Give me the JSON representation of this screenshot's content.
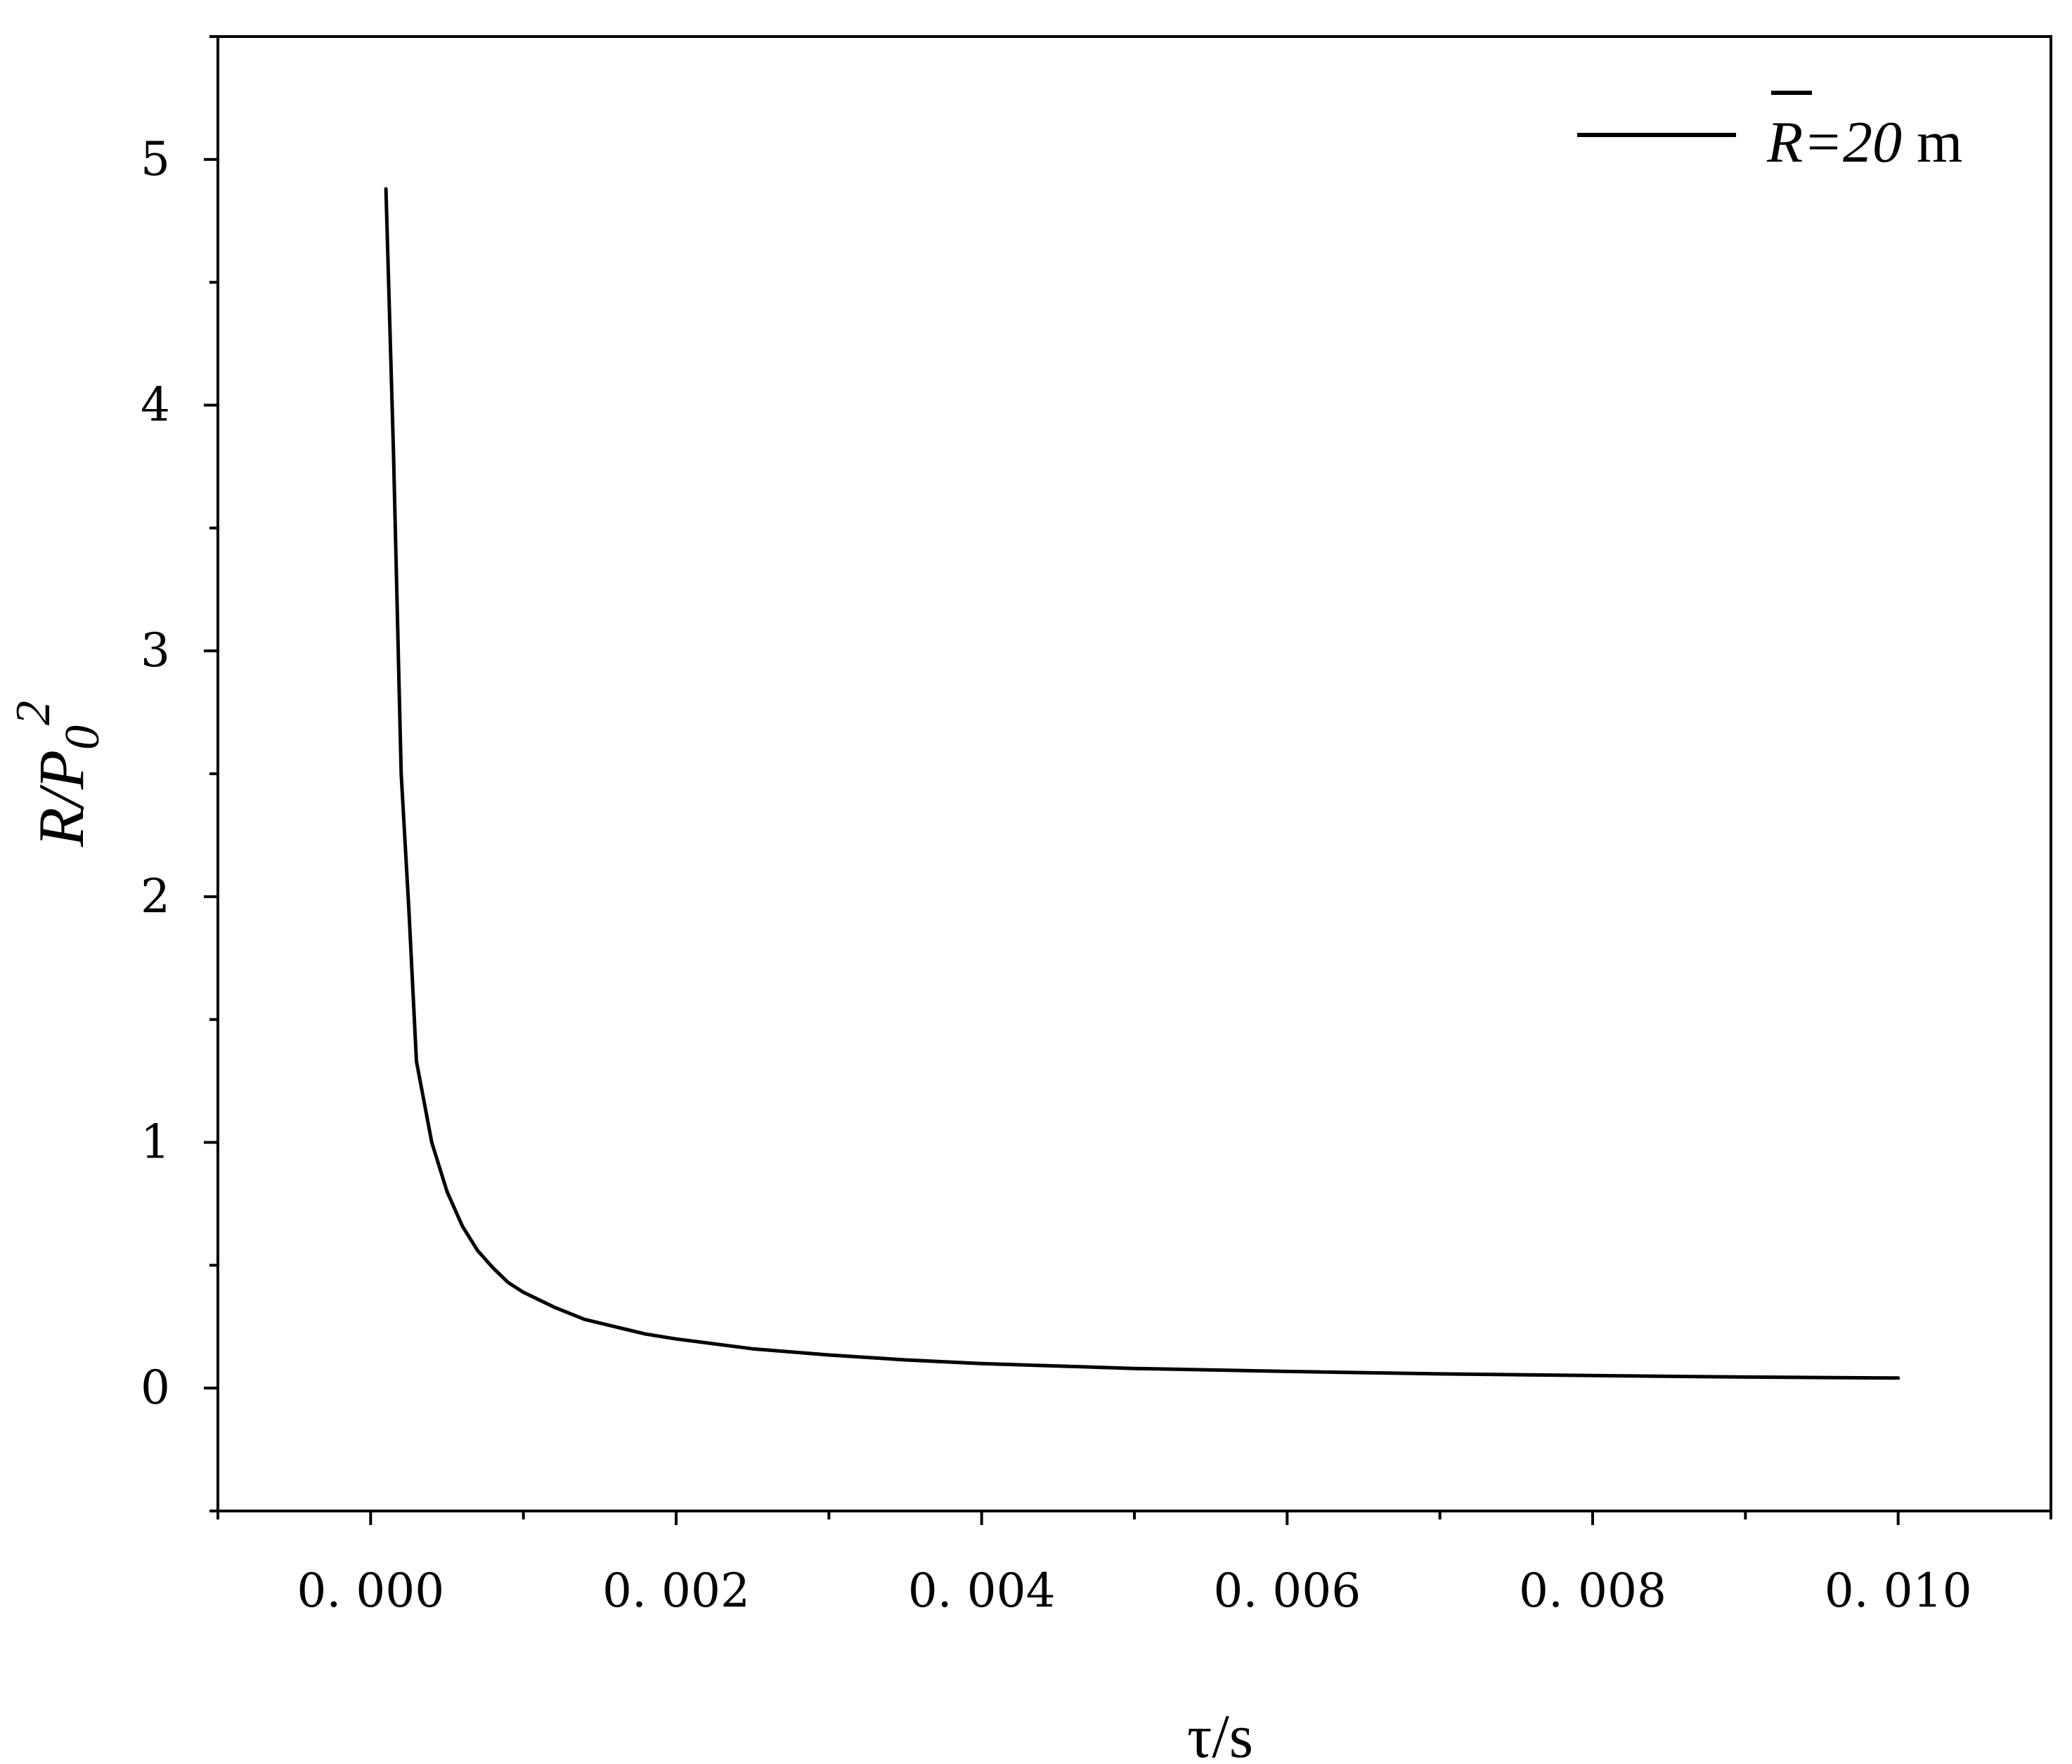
{
  "chart_data": {
    "type": "line",
    "title": "",
    "xlabel": "τ/s",
    "ylabel": {
      "main": "R/P",
      "subscript": "0",
      "superscript": "2"
    },
    "xlim": [
      -0.001,
      0.011
    ],
    "ylim": [
      -0.5,
      5.5
    ],
    "x_ticks": [
      0.0,
      0.002,
      0.004,
      0.006,
      0.008,
      0.01
    ],
    "x_tick_labels": [
      "0. 000",
      "0. 002",
      "0. 004",
      "0. 006",
      "0. 008",
      "0. 010"
    ],
    "y_ticks": [
      0,
      1,
      2,
      3,
      4,
      5
    ],
    "y_tick_labels": [
      "0",
      "1",
      "2",
      "3",
      "4",
      "5"
    ],
    "grid": false,
    "legend": {
      "position": "top-right"
    },
    "series": [
      {
        "name": "R̄=20 m",
        "name_parts": {
          "symbol": "R",
          "rest_italic": "=20",
          "unit": " m"
        },
        "color": "#000000",
        "x": [
          0.0001,
          0.00015,
          0.0002,
          0.00025,
          0.0003,
          0.0004,
          0.0005,
          0.0006,
          0.0007,
          0.0008,
          0.0009,
          0.001,
          0.0012,
          0.0014,
          0.0016,
          0.0018,
          0.002,
          0.0025,
          0.003,
          0.0035,
          0.004,
          0.005,
          0.006,
          0.007,
          0.008,
          0.009,
          0.01
        ],
        "y": [
          4.88,
          3.8,
          2.5,
          1.95,
          1.33,
          1.0,
          0.8,
          0.66,
          0.56,
          0.49,
          0.43,
          0.39,
          0.33,
          0.28,
          0.25,
          0.22,
          0.2,
          0.16,
          0.135,
          0.115,
          0.1,
          0.08,
          0.068,
          0.058,
          0.051,
          0.045,
          0.041
        ]
      }
    ]
  }
}
